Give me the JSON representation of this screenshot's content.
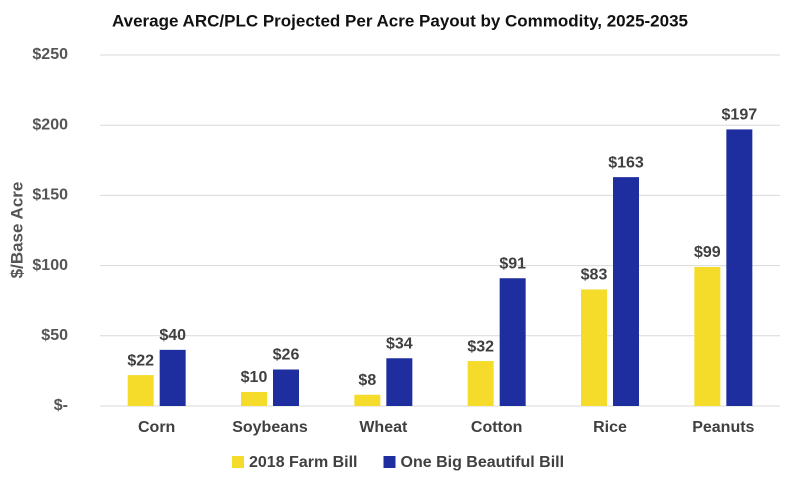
{
  "chart_data": {
    "type": "bar",
    "title": "Average ARC/PLC Projected Per Acre Payout by Commodity, 2025-2035",
    "y_label": "$/Base Acre",
    "categories": [
      "Corn",
      "Soybeans",
      "Wheat",
      "Cotton",
      "Rice",
      "Peanuts"
    ],
    "series": [
      {
        "name": "2018 Farm Bill",
        "color": "#f5dc2a",
        "values": [
          22,
          10,
          8,
          32,
          83,
          99
        ],
        "value_labels": [
          "$22",
          "$10",
          "$8",
          "$32",
          "$83",
          "$99"
        ]
      },
      {
        "name": "One Big Beautiful Bill",
        "color": "#1f2e9e",
        "values": [
          40,
          26,
          34,
          91,
          163,
          197
        ],
        "value_labels": [
          "$40",
          "$26",
          "$34",
          "$91",
          "$163",
          "$197"
        ]
      }
    ],
    "ylim": [
      0,
      250
    ],
    "yticks": [
      {
        "value": 0,
        "label": "$-"
      },
      {
        "value": 50,
        "label": "$50"
      },
      {
        "value": 100,
        "label": "$100"
      },
      {
        "value": 150,
        "label": "$150"
      },
      {
        "value": 200,
        "label": "$200"
      },
      {
        "value": 250,
        "label": "$250"
      }
    ],
    "grid": true,
    "legend": "bottom"
  }
}
